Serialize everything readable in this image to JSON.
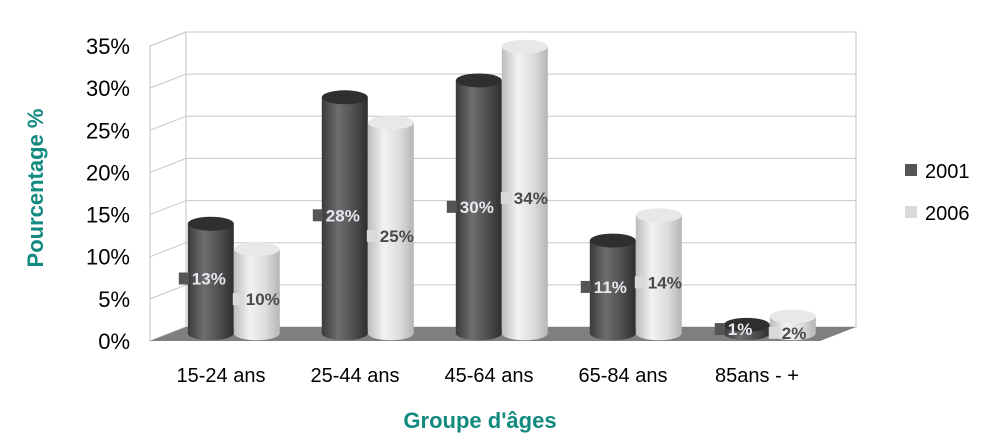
{
  "chart_data": {
    "type": "bar",
    "style": "3d-cylinder",
    "title": "",
    "xlabel": "Groupe d'âges",
    "ylabel": "Pourcentage %",
    "categories": [
      "15-24 ans",
      "25-44 ans",
      "45-64 ans",
      "65-84 ans",
      "85ans - +"
    ],
    "series": [
      {
        "name": "2001",
        "values": [
          13,
          28,
          30,
          11,
          1
        ],
        "labels": [
          "13%",
          "28%",
          "30%",
          "11%",
          "1%"
        ]
      },
      {
        "name": "2006",
        "values": [
          10,
          25,
          34,
          14,
          2
        ],
        "labels": [
          "10%",
          "25%",
          "34%",
          "14%",
          "2%"
        ]
      }
    ],
    "ylim": [
      0,
      35
    ],
    "yticks": [
      "0%",
      "5%",
      "10%",
      "15%",
      "20%",
      "25%",
      "30%",
      "35%"
    ],
    "grid": true,
    "legend": "right",
    "colors": {
      "2001": "#555555",
      "2006": "#d9d9d9",
      "axis_title": "#138a80",
      "floor": "#7f7f7f"
    }
  }
}
